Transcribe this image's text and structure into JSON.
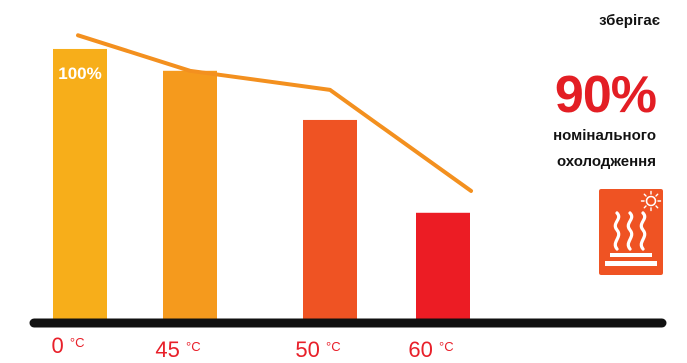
{
  "chart_data": {
    "type": "bar",
    "categories": [
      "0",
      "45",
      "50",
      "60"
    ],
    "category_unit": "°C",
    "series": [
      {
        "values": [
          100,
          92,
          74,
          40
        ]
      }
    ],
    "line_series": {
      "values": [
        105,
        92,
        85,
        48
      ]
    },
    "top_bar_label": "100%",
    "bar_colors": [
      "#F7AE1A",
      "#F59A1D",
      "#EF5323",
      "#EC1C24"
    ],
    "line_color": "#F3901F",
    "axis_color": "#111111",
    "tick_label_color": "#E8202A",
    "ylim": [
      0,
      115
    ],
    "grid": false,
    "legend": "none"
  },
  "callout": {
    "note": "зберігає",
    "value": "90%",
    "value_color": "#E31E24",
    "line1": "номінального",
    "line2": "охолодження",
    "icon": "heat-steam-icon",
    "icon_color": "#EF5323"
  }
}
